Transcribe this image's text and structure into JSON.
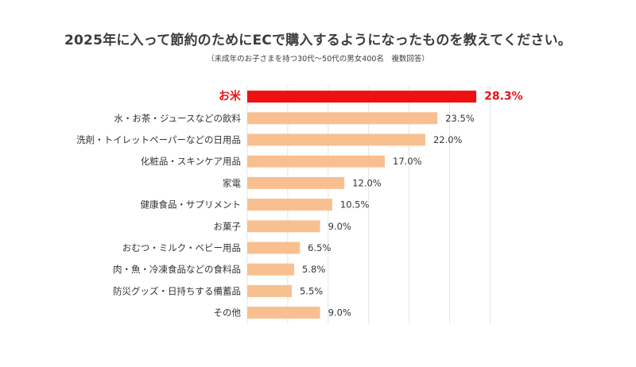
{
  "colors": {
    "bar": "#f8c090",
    "highlight": "#ee1111",
    "grid": "#e4e4e4",
    "text": "#333333"
  },
  "chart_data": {
    "type": "bar",
    "orientation": "horizontal",
    "title": "2025年に入って節約のためにECで購入するようになったものを教えてください。",
    "subtitle": "（未成年のお子さまを持つ30代〜50代の男女400名　複数回答）",
    "categories": [
      "お米",
      "水・お茶・ジュースなどの飲料",
      "洗剤・トイレットペーパーなどの日用品",
      "化粧品・スキンケア用品",
      "家電",
      "健康食品・サプリメント",
      "お菓子",
      "おむつ・ミルク・ベビー用品",
      "肉・魚・冷凍食品などの食料品",
      "防災グッズ・日持ちする備蓄品",
      "その他"
    ],
    "values": [
      28.3,
      23.5,
      22.0,
      17.0,
      12.0,
      10.5,
      9.0,
      6.5,
      5.8,
      5.5,
      9.0
    ],
    "value_labels": [
      "28.3%",
      "23.5%",
      "22.0%",
      "17.0%",
      "12.0%",
      "10.5%",
      "9.0%",
      "6.5%",
      "5.8%",
      "5.5%",
      "9.0%"
    ],
    "highlight_index": 0,
    "xlim": [
      0,
      30
    ],
    "grid": true,
    "legend": "none"
  }
}
